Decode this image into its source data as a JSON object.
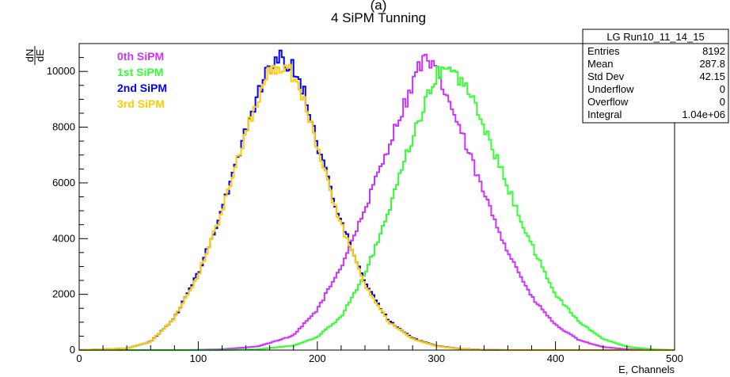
{
  "top_label": "(a)",
  "chart_data": {
    "type": "line",
    "title": "4 SiPM Tunning",
    "xlabel": "E, Channels",
    "ylabel_num": "dN",
    "ylabel_den": "dE",
    "xlim": [
      0,
      500
    ],
    "ylim": [
      0,
      11000
    ],
    "x_ticks": [
      0,
      100,
      200,
      300,
      400,
      500
    ],
    "y_ticks": [
      0,
      2000,
      4000,
      6000,
      8000,
      10000
    ],
    "grid": false,
    "legend_position": "top-left",
    "series": [
      {
        "name": "0th SiPM",
        "color": "#cc33ff",
        "x": [
          0,
          90,
          120,
          150,
          180,
          200,
          220,
          240,
          260,
          270,
          280,
          285,
          290,
          295,
          300,
          310,
          320,
          340,
          360,
          380,
          400,
          420,
          440,
          460,
          480,
          500
        ],
        "y": [
          0,
          0,
          30,
          130,
          520,
          1450,
          3000,
          5050,
          7350,
          8500,
          9500,
          10200,
          10400,
          10200,
          10000,
          9000,
          7900,
          5600,
          3550,
          1900,
          900,
          350,
          110,
          30,
          5,
          0
        ]
      },
      {
        "name": "1st SiPM",
        "color": "#33ff33",
        "x": [
          0,
          120,
          150,
          180,
          200,
          220,
          240,
          260,
          280,
          290,
          300,
          305,
          310,
          320,
          330,
          340,
          360,
          380,
          400,
          420,
          440,
          460,
          480,
          500
        ],
        "y": [
          0,
          0,
          30,
          160,
          470,
          1200,
          2700,
          4950,
          7650,
          8750,
          9800,
          10200,
          10000,
          9750,
          9000,
          8050,
          5850,
          3750,
          2000,
          1000,
          400,
          120,
          30,
          0
        ]
      },
      {
        "name": "2nd SiPM",
        "color": "#0000ff",
        "x": [
          0,
          40,
          60,
          80,
          100,
          120,
          140,
          150,
          160,
          170,
          180,
          190,
          200,
          220,
          240,
          260,
          280,
          300,
          320,
          340,
          360,
          380,
          400
        ],
        "y": [
          0,
          60,
          300,
          1150,
          2750,
          5000,
          7900,
          9200,
          10200,
          10500,
          10100,
          9150,
          7400,
          4600,
          2400,
          1050,
          420,
          150,
          45,
          10,
          0,
          0,
          0
        ]
      },
      {
        "name": "3rd SiPM",
        "color": "#ffcc00",
        "x": [
          0,
          40,
          60,
          80,
          100,
          120,
          140,
          150,
          160,
          170,
          180,
          190,
          200,
          220,
          240,
          260,
          280,
          300,
          320,
          340,
          360,
          380,
          400
        ],
        "y": [
          0,
          60,
          300,
          1150,
          2700,
          4950,
          7850,
          9050,
          10000,
          10200,
          9900,
          8950,
          7200,
          4500,
          2350,
          1000,
          400,
          140,
          40,
          10,
          0,
          0,
          0
        ]
      }
    ],
    "stats_box": {
      "title": "LG Run10_11_14_15",
      "rows": [
        {
          "label": "Entries",
          "value": "8192"
        },
        {
          "label": "Mean",
          "value": "287.8"
        },
        {
          "label": "Std Dev",
          "value": "42.15"
        },
        {
          "label": "Underflow",
          "value": "0"
        },
        {
          "label": "Overflow",
          "value": "0"
        },
        {
          "label": "Integral",
          "value": "1.04e+06"
        }
      ]
    }
  }
}
